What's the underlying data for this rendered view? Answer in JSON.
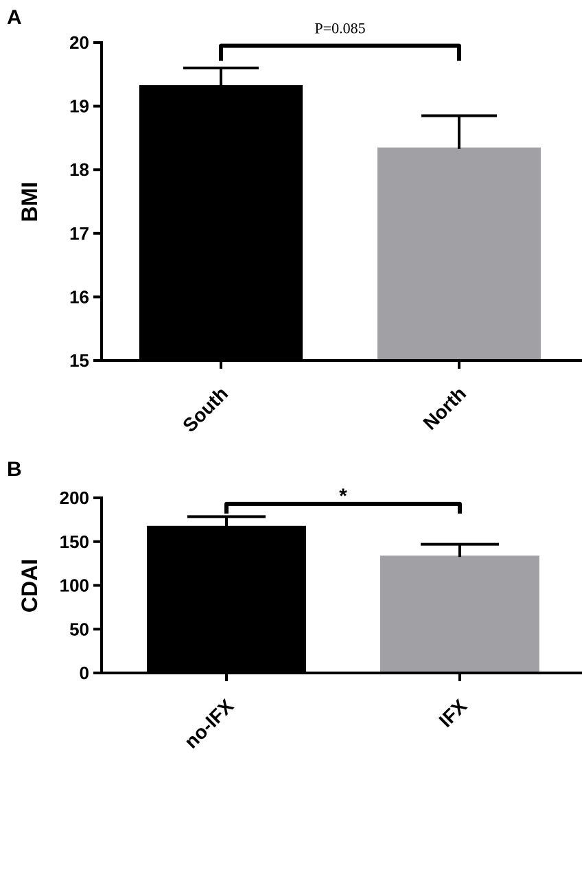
{
  "chart_data": [
    {
      "type": "bar",
      "panel": "A",
      "categories": [
        "South",
        "North"
      ],
      "values": [
        19.33,
        18.35
      ],
      "errors": [
        0.27,
        0.5
      ],
      "colors": [
        "#000000",
        "#a0a0a5"
      ],
      "ylabel": "BMI",
      "xlabel": "",
      "ylim": [
        15,
        20
      ],
      "yticks": [
        15,
        16,
        17,
        18,
        19,
        20
      ],
      "significance": {
        "label": "P=0.085",
        "between": [
          0,
          1
        ],
        "level": 19.95
      },
      "grid": false
    },
    {
      "type": "bar",
      "panel": "B",
      "categories": [
        "no-IFX",
        "IFX"
      ],
      "values": [
        168,
        134
      ],
      "errors": [
        10.5,
        13
      ],
      "colors": [
        "#000000",
        "#a0a0a5"
      ],
      "ylabel": "CDAI",
      "xlabel": "",
      "ylim": [
        0,
        200
      ],
      "yticks": [
        0,
        50,
        100,
        150,
        200
      ],
      "significance": {
        "label": "*",
        "between": [
          0,
          1
        ],
        "level": 193
      },
      "grid": false
    }
  ]
}
